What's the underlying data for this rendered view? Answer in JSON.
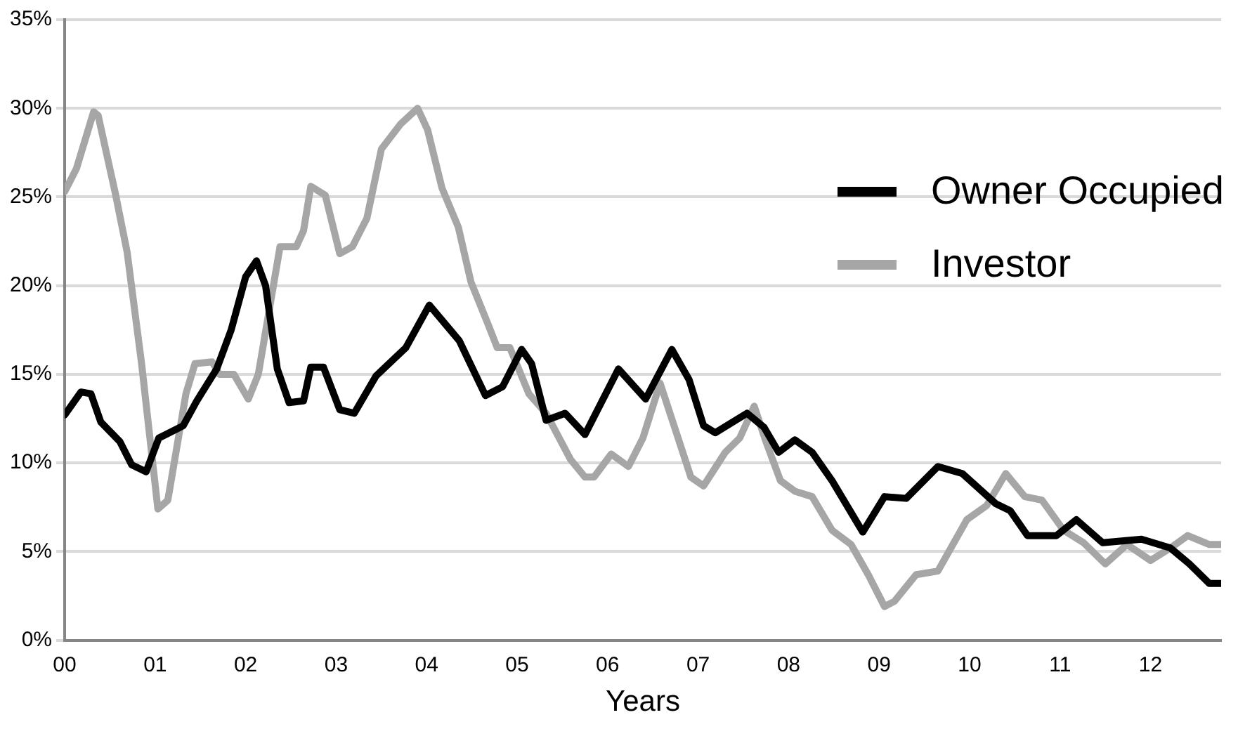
{
  "chart_data": {
    "type": "line",
    "xlabel": "Years",
    "xlim": [
      0,
      12.78
    ],
    "ylim": [
      0,
      35
    ],
    "xticks": [
      {
        "value": 0,
        "label": "00"
      },
      {
        "value": 1,
        "label": "01"
      },
      {
        "value": 2,
        "label": "02"
      },
      {
        "value": 3,
        "label": "03"
      },
      {
        "value": 4,
        "label": "04"
      },
      {
        "value": 5,
        "label": "05"
      },
      {
        "value": 6,
        "label": "06"
      },
      {
        "value": 7,
        "label": "07"
      },
      {
        "value": 8,
        "label": "08"
      },
      {
        "value": 9,
        "label": "09"
      },
      {
        "value": 10,
        "label": "10"
      },
      {
        "value": 11,
        "label": "11"
      },
      {
        "value": 12,
        "label": "12"
      }
    ],
    "yticks": [
      {
        "value": 0,
        "label": "0%"
      },
      {
        "value": 5,
        "label": "5%"
      },
      {
        "value": 10,
        "label": "10%"
      },
      {
        "value": 15,
        "label": "15%"
      },
      {
        "value": 20,
        "label": "20%"
      },
      {
        "value": 25,
        "label": "25%"
      },
      {
        "value": 30,
        "label": "30%"
      },
      {
        "value": 35,
        "label": "35%"
      }
    ],
    "grid": "y",
    "legend": "top right",
    "marker": "none",
    "line_style": "solid",
    "series": [
      {
        "name": "Owner Occupied",
        "color": "#000000",
        "x": [
          0,
          0.18,
          0.29,
          0.4,
          0.61,
          0.74,
          0.9,
          1.04,
          1.31,
          1.46,
          1.68,
          1.84,
          2,
          2.12,
          2.22,
          2.35,
          2.48,
          2.64,
          2.72,
          2.86,
          3.04,
          3.2,
          3.44,
          3.77,
          4.03,
          4.36,
          4.65,
          4.84,
          5.05,
          5.16,
          5.32,
          5.53,
          5.75,
          6.12,
          6.42,
          6.71,
          6.9,
          7.06,
          7.19,
          7.54,
          7.73,
          7.89,
          8.07,
          8.26,
          8.48,
          8.82,
          9.06,
          9.3,
          9.65,
          9.92,
          10.29,
          10.45,
          10.64,
          10.96,
          11.18,
          11.47,
          11.9,
          12.22,
          12.43,
          12.65,
          12.78
        ],
        "values": [
          12.7,
          14,
          13.9,
          12.3,
          11.2,
          9.9,
          9.5,
          11.4,
          12.1,
          13.5,
          15.3,
          17.5,
          20.5,
          21.4,
          20,
          15.3,
          13.4,
          13.5,
          15.4,
          15.4,
          13,
          12.8,
          14.9,
          16.5,
          18.9,
          16.9,
          13.8,
          14.3,
          16.4,
          15.6,
          12.4,
          12.8,
          11.6,
          15.3,
          13.6,
          16.4,
          14.7,
          12.1,
          11.7,
          12.8,
          12,
          10.6,
          11.3,
          10.6,
          9,
          6.1,
          8.1,
          8,
          9.8,
          9.4,
          7.7,
          7.3,
          5.9,
          5.9,
          6.8,
          5.5,
          5.7,
          5.2,
          4.3,
          3.2,
          3.2
        ]
      },
      {
        "name": "Investor",
        "color": "#a6a6a6",
        "x": [
          0,
          0.13,
          0.32,
          0.37,
          0.56,
          0.69,
          0.85,
          1.03,
          1.14,
          1.34,
          1.44,
          1.63,
          1.71,
          1.87,
          2.03,
          2.14,
          2.38,
          2.56,
          2.64,
          2.72,
          2.88,
          3.04,
          3.18,
          3.34,
          3.5,
          3.71,
          3.9,
          4.01,
          4.17,
          4.35,
          4.49,
          4.68,
          4.78,
          4.92,
          5.13,
          5.32,
          5.59,
          5.75,
          5.85,
          6.04,
          6.23,
          6.39,
          6.58,
          6.76,
          6.92,
          7.06,
          7.3,
          7.46,
          7.62,
          7.75,
          7.91,
          8.07,
          8.26,
          8.48,
          8.69,
          8.88,
          9.06,
          9.17,
          9.41,
          9.65,
          9.97,
          10.19,
          10.4,
          10.61,
          10.8,
          11.04,
          11.26,
          11.5,
          11.74,
          12,
          12.22,
          12.41,
          12.65,
          12.78
        ],
        "values": [
          25.3,
          26.6,
          29.8,
          29.6,
          25.2,
          21.9,
          15.6,
          7.4,
          7.9,
          13.9,
          15.6,
          15.7,
          15,
          15,
          13.6,
          15,
          22.2,
          22.2,
          23.1,
          25.6,
          25.1,
          21.8,
          22.2,
          23.8,
          27.7,
          29.1,
          30,
          28.8,
          25.5,
          23.3,
          20.2,
          17.8,
          16.5,
          16.5,
          13.9,
          12.8,
          10.2,
          9.2,
          9.2,
          10.5,
          9.8,
          11.4,
          14.5,
          11.7,
          9.2,
          8.7,
          10.6,
          11.4,
          13.2,
          11.2,
          9,
          8.4,
          8.1,
          6.2,
          5.4,
          3.7,
          1.9,
          2.2,
          3.7,
          3.9,
          6.8,
          7.6,
          9.4,
          8.1,
          7.9,
          6.2,
          5.5,
          4.3,
          5.4,
          4.5,
          5.2,
          5.9,
          5.4,
          5.4
        ]
      }
    ]
  }
}
